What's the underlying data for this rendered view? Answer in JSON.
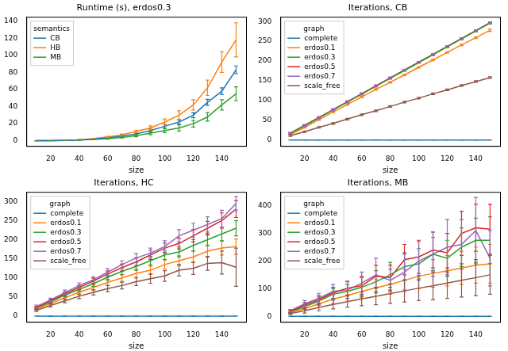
{
  "chart_data": [
    {
      "type": "line",
      "title": "Runtime (s), erdos0.3",
      "x_label": "size",
      "x": [
        10,
        20,
        30,
        40,
        50,
        60,
        70,
        80,
        90,
        100,
        110,
        120,
        130,
        140,
        150
      ],
      "xlim": [
        3,
        157
      ],
      "xticks": [
        20,
        40,
        60,
        80,
        100,
        120,
        140
      ],
      "ylim": [
        -6,
        145
      ],
      "yticks": [
        0,
        20,
        40,
        60,
        80,
        100,
        120,
        140
      ],
      "grid": false,
      "legend": "upper left",
      "legend_title": "semantics",
      "series": [
        {
          "name": "CB",
          "color": "#1f77b4",
          "values": [
            0.1,
            0.2,
            0.5,
            1,
            2,
            3.5,
            5.5,
            8,
            12,
            17,
            22,
            30,
            45,
            58,
            83
          ],
          "errors": [
            0,
            0,
            0.1,
            0.2,
            0.3,
            0.5,
            0.8,
            1,
            1.5,
            2,
            2.5,
            3,
            3.5,
            4,
            4.5
          ]
        },
        {
          "name": "HB",
          "color": "#ff7f0e",
          "values": [
            0.1,
            0.3,
            0.6,
            1.2,
            2.5,
            4.5,
            7,
            11,
            15,
            22,
            30,
            42,
            62,
            92,
            118
          ],
          "errors": [
            0,
            0,
            0.1,
            0.2,
            0.4,
            0.7,
            1,
            1.5,
            2.5,
            3.5,
            5,
            6,
            9,
            12,
            20
          ]
        },
        {
          "name": "MB",
          "color": "#2ca02c",
          "values": [
            0.1,
            0.2,
            0.4,
            0.8,
            1.5,
            2.5,
            4,
            6,
            9,
            12,
            15,
            20,
            28,
            42,
            55
          ],
          "errors": [
            0,
            0,
            0.1,
            0.2,
            0.3,
            0.5,
            0.8,
            1.2,
            2,
            2.5,
            3.5,
            4,
            5,
            6,
            8
          ]
        }
      ]
    },
    {
      "type": "line",
      "title": "Iterations, CB",
      "x_label": "size",
      "x": [
        10,
        20,
        30,
        40,
        50,
        60,
        70,
        80,
        90,
        100,
        110,
        120,
        130,
        140,
        150
      ],
      "xlim": [
        3,
        157
      ],
      "xticks": [
        20,
        40,
        60,
        80,
        100,
        120,
        140
      ],
      "ylim": [
        -15,
        312
      ],
      "yticks": [
        0,
        50,
        100,
        150,
        200,
        250,
        300
      ],
      "grid": false,
      "legend": "upper left",
      "legend_title": "graph",
      "series": [
        {
          "name": "complete",
          "color": "#1f77b4",
          "values": [
            0,
            0,
            0,
            0,
            0,
            0,
            0,
            0,
            0,
            0,
            0,
            0,
            0,
            0,
            0
          ],
          "errors": [
            0,
            0,
            0,
            0,
            0,
            0,
            0,
            0,
            0,
            0,
            0,
            0,
            0,
            0,
            0
          ]
        },
        {
          "name": "erdos0.1",
          "color": "#ff7f0e",
          "values": [
            14,
            32,
            52,
            71,
            90,
            109,
            128,
            146,
            165,
            184,
            203,
            222,
            241,
            259,
            278
          ],
          "errors": [
            2,
            2,
            2,
            2,
            2,
            2,
            2,
            2,
            2,
            2,
            2,
            2,
            2,
            2,
            3
          ]
        },
        {
          "name": "erdos0.3",
          "color": "#2ca02c",
          "values": [
            17,
            36,
            56,
            76,
            96,
            116,
            136,
            156,
            176,
            196,
            216,
            236,
            256,
            276,
            296
          ],
          "errors": [
            2,
            2,
            2,
            2,
            2,
            2,
            2,
            2,
            2,
            2,
            2,
            2,
            2,
            2,
            2
          ]
        },
        {
          "name": "erdos0.5",
          "color": "#d62728",
          "values": [
            17,
            37,
            57,
            77,
            97,
            117,
            137,
            157,
            177,
            197,
            217,
            237,
            257,
            277,
            297
          ],
          "errors": [
            2,
            2,
            2,
            2,
            2,
            2,
            2,
            2,
            2,
            2,
            2,
            2,
            2,
            2,
            2
          ]
        },
        {
          "name": "erdos0.7",
          "color": "#9467bd",
          "values": [
            17,
            37,
            57,
            77,
            97,
            117,
            137,
            157,
            177,
            197,
            217,
            237,
            257,
            277,
            297
          ],
          "errors": [
            2,
            2,
            2,
            2,
            2,
            2,
            2,
            2,
            2,
            2,
            2,
            2,
            2,
            2,
            2
          ]
        },
        {
          "name": "scale_free",
          "color": "#8c564b",
          "values": [
            11,
            21,
            32,
            42,
            53,
            64,
            74,
            85,
            96,
            106,
            117,
            127,
            138,
            148,
            158
          ],
          "errors": [
            2,
            2,
            2,
            2,
            2,
            2,
            2,
            2,
            2,
            2,
            2,
            2,
            2,
            2,
            2
          ]
        }
      ]
    },
    {
      "type": "line",
      "title": "Iterations, HC",
      "x_label": "size",
      "x": [
        10,
        20,
        30,
        40,
        50,
        60,
        70,
        80,
        90,
        100,
        110,
        120,
        130,
        140,
        150
      ],
      "xlim": [
        3,
        157
      ],
      "xticks": [
        20,
        40,
        60,
        80,
        100,
        120,
        140
      ],
      "ylim": [
        -15,
        325
      ],
      "yticks": [
        0,
        50,
        100,
        150,
        200,
        250,
        300
      ],
      "grid": false,
      "legend": "upper left",
      "legend_title": "graph",
      "series": [
        {
          "name": "complete",
          "color": "#1f77b4",
          "values": [
            0,
            0,
            0,
            0,
            0,
            0,
            0,
            0,
            0,
            0,
            0,
            0,
            0,
            0,
            0
          ],
          "errors": [
            0,
            0,
            0,
            0,
            0,
            0,
            0,
            0,
            0,
            0,
            0,
            0,
            0,
            0,
            0
          ]
        },
        {
          "name": "erdos0.1",
          "color": "#ff7f0e",
          "values": [
            18,
            33,
            48,
            62,
            75,
            88,
            100,
            112,
            120,
            135,
            145,
            155,
            170,
            178,
            182
          ],
          "errors": [
            3,
            4,
            5,
            6,
            7,
            8,
            9,
            10,
            11,
            12,
            13,
            15,
            16,
            18,
            20
          ]
        },
        {
          "name": "erdos0.3",
          "color": "#2ca02c",
          "values": [
            20,
            37,
            55,
            70,
            85,
            102,
            117,
            130,
            145,
            160,
            168,
            185,
            200,
            215,
            230
          ],
          "errors": [
            3,
            4,
            5,
            6,
            7,
            8,
            9,
            10,
            11,
            12,
            13,
            15,
            16,
            18,
            20
          ]
        },
        {
          "name": "erdos0.5",
          "color": "#d62728",
          "values": [
            22,
            40,
            58,
            75,
            92,
            110,
            127,
            142,
            160,
            178,
            190,
            210,
            230,
            250,
            280
          ],
          "errors": [
            3,
            4,
            5,
            6,
            7,
            8,
            9,
            10,
            12,
            13,
            14,
            16,
            18,
            20,
            22
          ]
        },
        {
          "name": "erdos0.7",
          "color": "#9467bd",
          "values": [
            25,
            42,
            62,
            80,
            95,
            115,
            135,
            152,
            165,
            182,
            210,
            225,
            240,
            255,
            295
          ],
          "errors": [
            4,
            5,
            6,
            7,
            8,
            9,
            10,
            12,
            13,
            15,
            16,
            18,
            20,
            22,
            18
          ]
        },
        {
          "name": "scale_free",
          "color": "#8c564b",
          "values": [
            15,
            28,
            40,
            52,
            62,
            72,
            80,
            90,
            98,
            105,
            120,
            125,
            138,
            140,
            128
          ],
          "errors": [
            3,
            4,
            5,
            6,
            7,
            8,
            9,
            10,
            12,
            14,
            15,
            16,
            18,
            30,
            50
          ]
        }
      ]
    },
    {
      "type": "line",
      "title": "Iterations, MB",
      "x_label": "size",
      "x": [
        10,
        20,
        30,
        40,
        50,
        60,
        70,
        80,
        90,
        100,
        110,
        120,
        130,
        140,
        150
      ],
      "xlim": [
        3,
        157
      ],
      "xticks": [
        20,
        40,
        60,
        80,
        100,
        120,
        140
      ],
      "ylim": [
        -20,
        450
      ],
      "yticks": [
        0,
        100,
        200,
        300,
        400
      ],
      "grid": false,
      "legend": "upper left",
      "legend_title": "graph",
      "series": [
        {
          "name": "complete",
          "color": "#1f77b4",
          "values": [
            0,
            0,
            0,
            0,
            0,
            0,
            0,
            0,
            0,
            0,
            0,
            0,
            0,
            0,
            0
          ],
          "errors": [
            0,
            0,
            0,
            0,
            0,
            0,
            0,
            0,
            0,
            0,
            0,
            0,
            0,
            0,
            0
          ]
        },
        {
          "name": "erdos0.1",
          "color": "#ff7f0e",
          "values": [
            13,
            28,
            45,
            62,
            75,
            90,
            103,
            115,
            130,
            145,
            155,
            165,
            175,
            185,
            190
          ],
          "errors": [
            4,
            8,
            12,
            15,
            20,
            25,
            30,
            35,
            40,
            45,
            50,
            55,
            60,
            65,
            70
          ]
        },
        {
          "name": "erdos0.3",
          "color": "#2ca02c",
          "values": [
            15,
            35,
            55,
            80,
            90,
            105,
            125,
            150,
            180,
            190,
            225,
            210,
            250,
            275,
            275
          ],
          "errors": [
            5,
            10,
            15,
            20,
            25,
            35,
            40,
            45,
            50,
            55,
            60,
            65,
            70,
            80,
            85
          ]
        },
        {
          "name": "erdos0.5",
          "color": "#d62728",
          "values": [
            18,
            40,
            60,
            85,
            102,
            110,
            145,
            140,
            205,
            215,
            240,
            230,
            300,
            320,
            315
          ],
          "errors": [
            5,
            10,
            15,
            20,
            25,
            35,
            40,
            45,
            55,
            60,
            65,
            70,
            80,
            85,
            90
          ]
        },
        {
          "name": "erdos0.7",
          "color": "#9467bd",
          "values": [
            20,
            45,
            65,
            90,
            95,
            120,
            150,
            130,
            160,
            200,
            225,
            250,
            260,
            310,
            210
          ],
          "errors": [
            5,
            12,
            18,
            25,
            30,
            40,
            60,
            40,
            65,
            70,
            80,
            100,
            90,
            120,
            100
          ]
        },
        {
          "name": "scale_free",
          "color": "#8c564b",
          "values": [
            10,
            20,
            32,
            43,
            53,
            63,
            72,
            82,
            92,
            102,
            110,
            120,
            130,
            140,
            150
          ],
          "errors": [
            3,
            8,
            12,
            16,
            20,
            25,
            30,
            35,
            40,
            45,
            50,
            55,
            60,
            65,
            70
          ]
        }
      ]
    }
  ]
}
